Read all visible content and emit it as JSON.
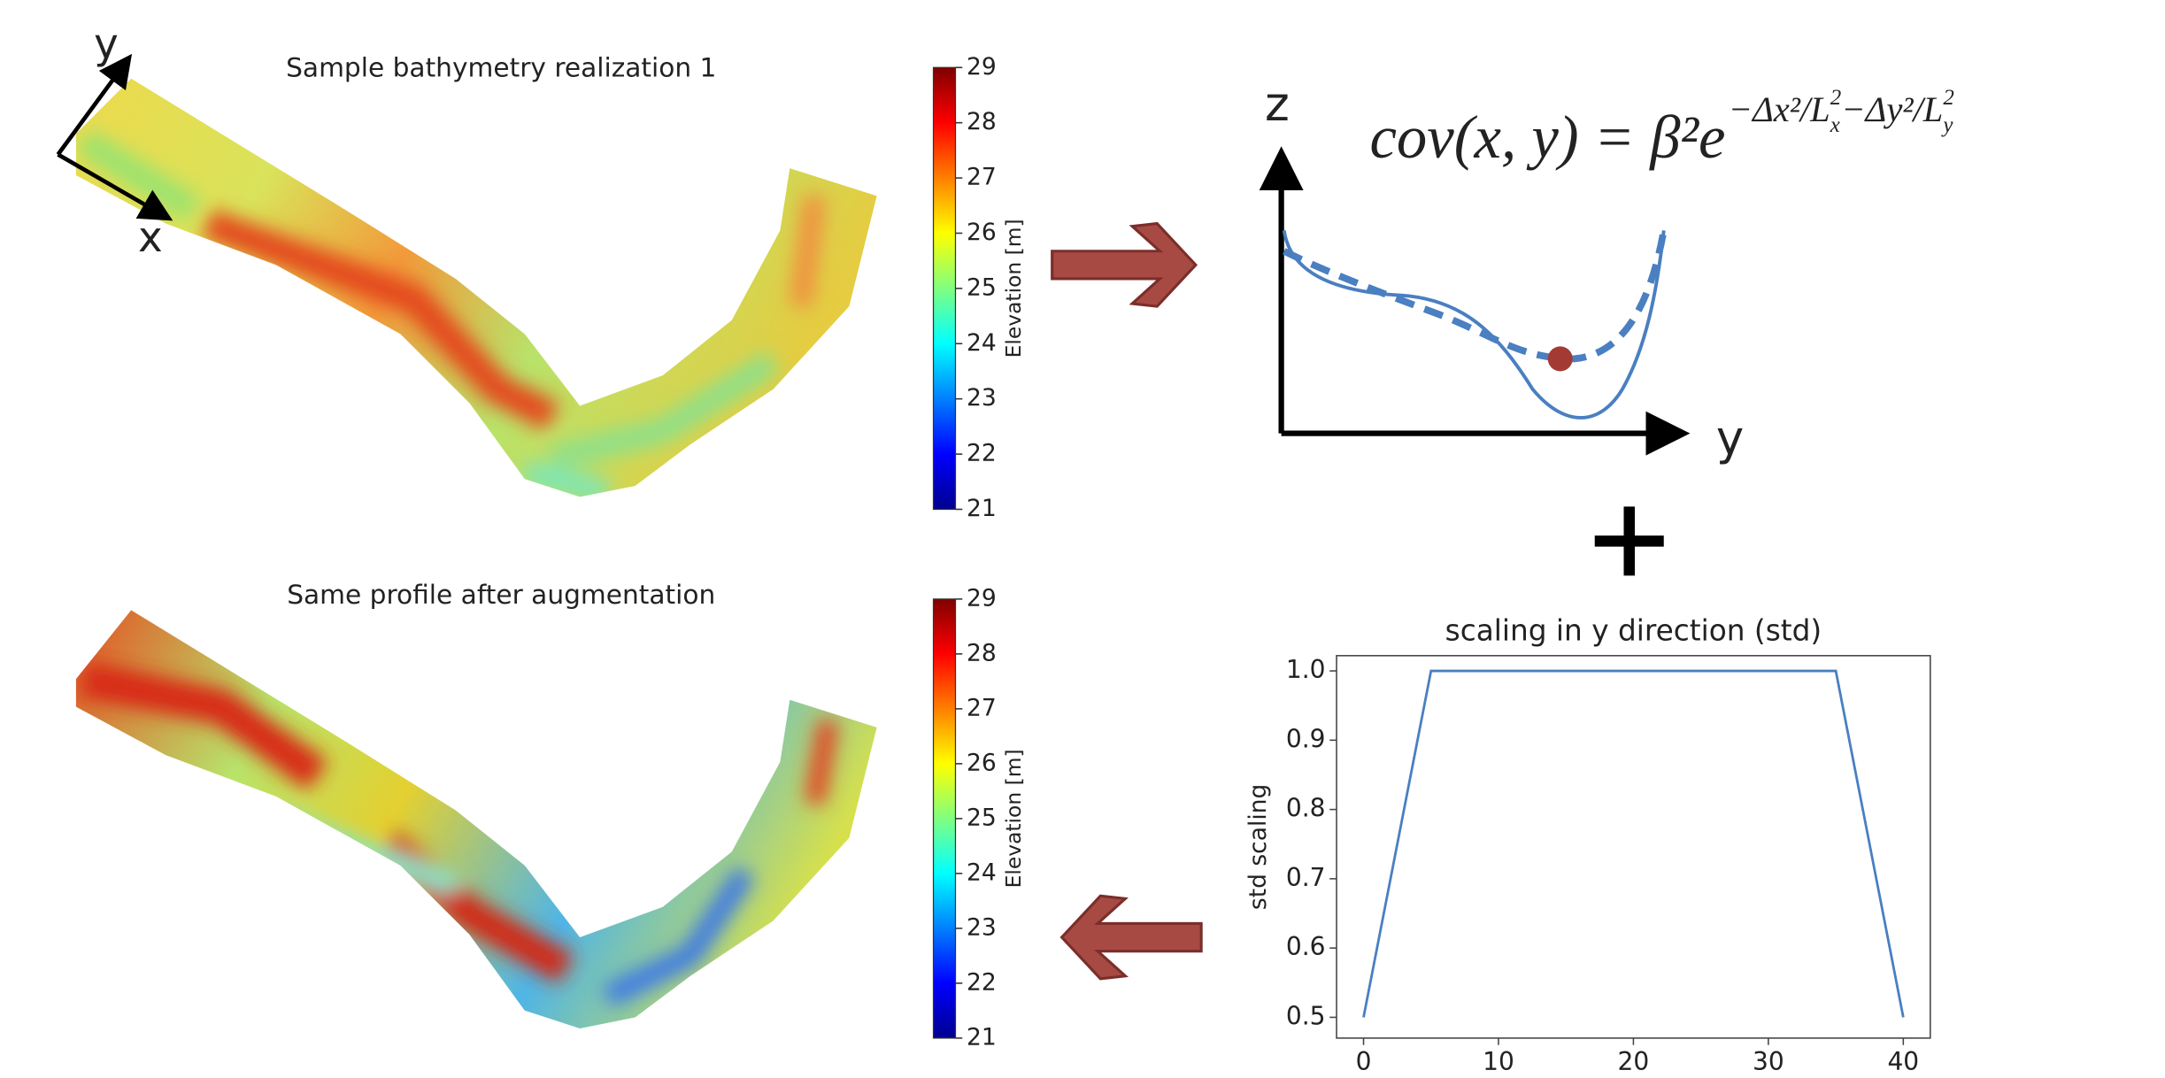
{
  "panels": [
    {
      "title": "Sample bathymetry realization 1",
      "colorbar": {
        "label": "Elevation [m]",
        "lim": [
          21,
          29
        ],
        "ticks": [
          21,
          22,
          23,
          24,
          25,
          26,
          27,
          28,
          29
        ]
      }
    },
    {
      "title": "Same profile after augmentation",
      "colorbar": {
        "label": "Elevation [m]",
        "lim": [
          21,
          29
        ],
        "ticks": [
          21,
          22,
          23,
          24,
          25,
          26,
          27,
          28,
          29
        ]
      }
    }
  ],
  "compass": {
    "y": "y",
    "x": "x"
  },
  "sketch": {
    "z_label": "z",
    "y_label": "y",
    "formula": "cov(x, y) = β²e",
    "exponent": [
      "−Δx²/L",
      "x",
      "2",
      "−Δy²/L",
      "y",
      "2"
    ]
  },
  "chart_data": {
    "type": "line",
    "title": "scaling in y direction (std)",
    "y_label": "std scaling",
    "x": [
      0,
      5,
      35,
      40
    ],
    "series": [
      {
        "color": "#4a7fc1",
        "values": [
          0.5,
          1,
          1,
          0.5
        ]
      }
    ],
    "xlim": [
      -2,
      42
    ],
    "ylim": [
      0.47,
      1.022
    ],
    "xticks": [
      0,
      10,
      20,
      30,
      40
    ],
    "yticks": [
      0.5,
      0.6,
      0.7,
      0.8,
      0.9,
      {
        "value": 1,
        "label": "1.0"
      }
    ]
  }
}
